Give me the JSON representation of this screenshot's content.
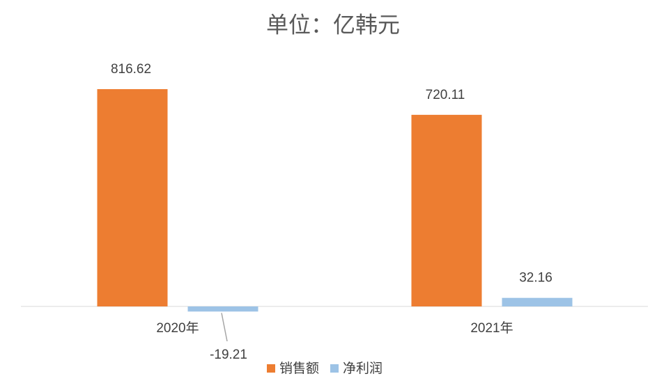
{
  "chart_data": {
    "type": "bar",
    "title": "单位：亿韩元",
    "categories": [
      "2020年",
      "2021年"
    ],
    "series": [
      {
        "name": "销售额",
        "color": "#ed7d31",
        "values": [
          816.62,
          720.11
        ]
      },
      {
        "name": "净利润",
        "color": "#9dc3e6",
        "values": [
          -19.21,
          32.16
        ]
      }
    ],
    "legend": "bottom"
  }
}
